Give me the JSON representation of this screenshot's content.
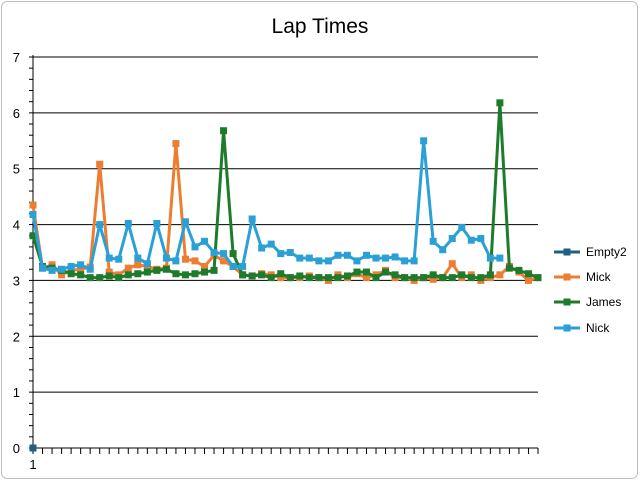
{
  "chart_data": {
    "type": "line",
    "title": "Lap Times",
    "xlabel": "",
    "ylabel": "",
    "ylim": [
      0,
      7
    ],
    "yticks": [
      0,
      1,
      2,
      3,
      4,
      5,
      6,
      7
    ],
    "xtick_label": "1",
    "grid": "horizontal",
    "legend_position": "right",
    "series": [
      {
        "name": "Empty2",
        "color": "#1f5f7f",
        "values": [
          0
        ]
      },
      {
        "name": "Mick",
        "color": "#ed7d31",
        "values": [
          4.35,
          3.22,
          3.28,
          3.1,
          3.18,
          3.2,
          3.24,
          5.08,
          3.15,
          3.1,
          3.22,
          3.28,
          3.25,
          3.2,
          3.22,
          5.45,
          3.38,
          3.35,
          3.25,
          3.45,
          3.35,
          3.25,
          3.1,
          3.08,
          3.12,
          3.1,
          3.05,
          3.05,
          3.05,
          3.08,
          3.05,
          3.0,
          3.1,
          3.05,
          3.12,
          3.05,
          3.1,
          3.18,
          3.05,
          3.05,
          3.0,
          3.05,
          3.02,
          3.05,
          3.3,
          3.05,
          3.1,
          3.0,
          3.05,
          3.1,
          3.25,
          3.15,
          3.0,
          3.05
        ]
      },
      {
        "name": "James",
        "color": "#1e7b2b",
        "values": [
          3.8,
          3.25,
          3.22,
          3.18,
          3.12,
          3.1,
          3.05,
          3.05,
          3.08,
          3.05,
          3.1,
          3.12,
          3.15,
          3.18,
          3.2,
          3.12,
          3.1,
          3.12,
          3.15,
          3.18,
          5.68,
          3.48,
          3.1,
          3.08,
          3.1,
          3.05,
          3.12,
          3.05,
          3.08,
          3.05,
          3.05,
          3.05,
          3.05,
          3.08,
          3.15,
          3.15,
          3.05,
          3.15,
          3.1,
          3.05,
          3.05,
          3.05,
          3.1,
          3.05,
          3.05,
          3.1,
          3.05,
          3.05,
          3.1,
          6.18,
          3.22,
          3.18,
          3.12,
          3.05
        ]
      },
      {
        "name": "Nick",
        "color": "#2aa0d6",
        "values": [
          4.18,
          3.22,
          3.18,
          3.2,
          3.25,
          3.28,
          3.2,
          4.0,
          3.4,
          3.38,
          4.02,
          3.4,
          3.3,
          4.02,
          3.4,
          3.35,
          4.05,
          3.6,
          3.7,
          3.5,
          3.48,
          3.25,
          3.25,
          4.1,
          3.58,
          3.65,
          3.48,
          3.5,
          3.4,
          3.4,
          3.35,
          3.35,
          3.45,
          3.45,
          3.35,
          3.45,
          3.4,
          3.4,
          3.42,
          3.35,
          3.35,
          5.5,
          3.7,
          3.55,
          3.75,
          3.95,
          3.72,
          3.75,
          3.4,
          3.4
        ]
      }
    ]
  }
}
